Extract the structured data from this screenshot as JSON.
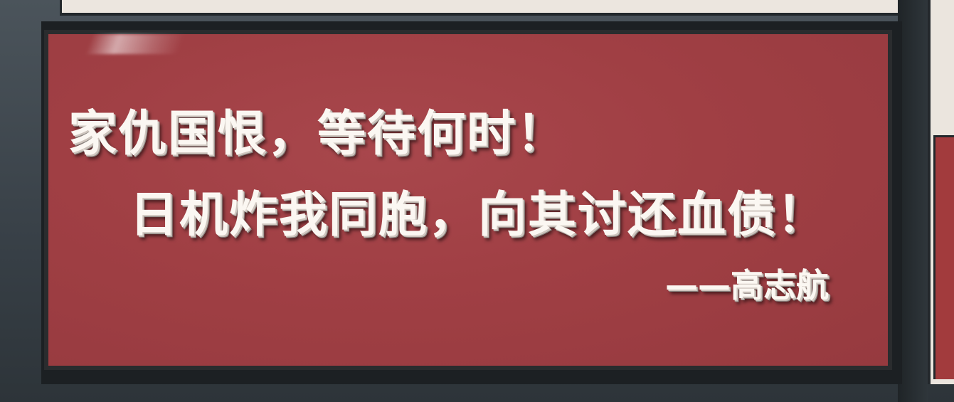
{
  "sign": {
    "line1": "家仇国恨，等待何时！",
    "line2": "日机炸我同胞，向其讨还血债！",
    "attribution": "——高志航"
  },
  "colors": {
    "sign_red": "#a0404a",
    "text_white": "#fbf7f2",
    "frame_dark": "#2a2c2e",
    "wall_gray": "#3a4147"
  }
}
